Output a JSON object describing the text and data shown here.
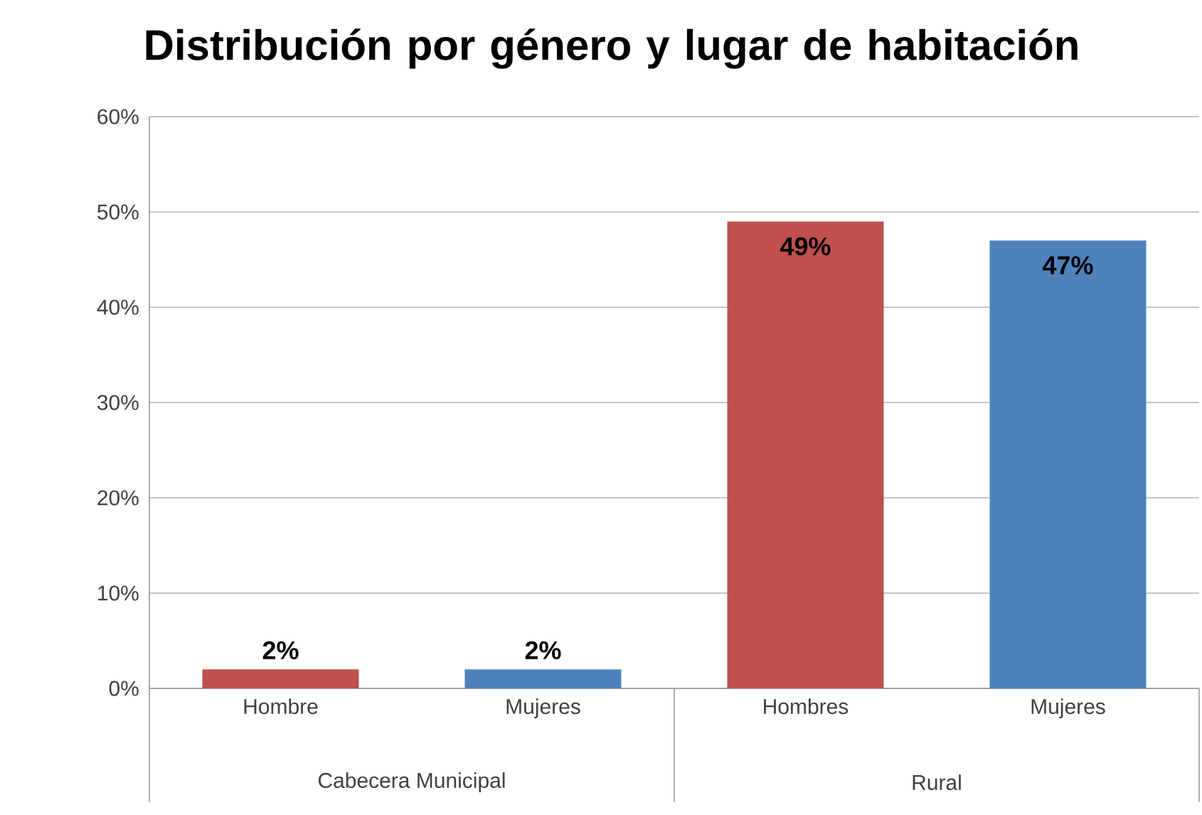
{
  "chart_data": {
    "type": "bar",
    "title": "Distribución por género y lugar de habitación",
    "categories": [
      "Hombre",
      "Mujeres",
      "Hombres",
      "Mujeres"
    ],
    "values": [
      2,
      2,
      49,
      47
    ],
    "colors": [
      "#c0504d",
      "#4f81bd",
      "#c0504d",
      "#4f81bd"
    ],
    "value_labels": [
      "2%",
      "2%",
      "49%",
      "47%"
    ],
    "annotations": [
      "Cabecera Municipal",
      "Rural"
    ],
    "ylim": [
      0,
      60
    ],
    "yticks": [
      {
        "value": 0,
        "label": "0%"
      },
      {
        "value": 10,
        "label": "10%"
      },
      {
        "value": 20,
        "label": "20%"
      },
      {
        "value": 30,
        "label": "30%"
      },
      {
        "value": 40,
        "label": "40%"
      },
      {
        "value": 50,
        "label": "50%"
      },
      {
        "value": 60,
        "label": "60%"
      }
    ],
    "grid": "y"
  }
}
